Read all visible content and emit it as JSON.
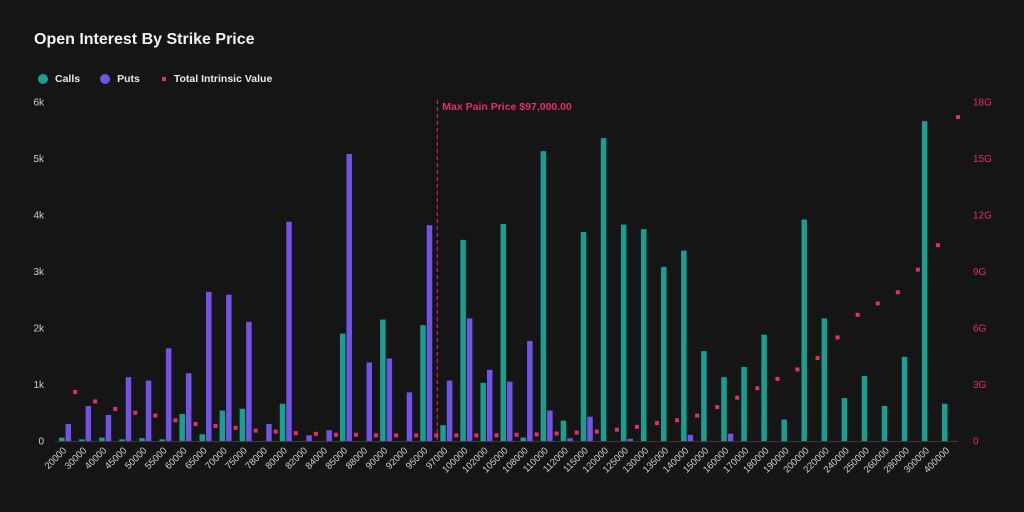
{
  "title": "Open Interest By Strike Price",
  "legend": {
    "calls": "Calls",
    "puts": "Puts",
    "intrinsic": "Total Intrinsic Value"
  },
  "colors": {
    "calls": "#1a9e91",
    "puts": "#7153e8",
    "intrinsic": "#e0306a",
    "background": "#151515"
  },
  "chart_data": {
    "type": "bar",
    "title": "Open Interest By Strike Price",
    "categories": [
      "20000",
      "30000",
      "40000",
      "45000",
      "50000",
      "55000",
      "60000",
      "65000",
      "70000",
      "75000",
      "78000",
      "80000",
      "82000",
      "84000",
      "85000",
      "88000",
      "90000",
      "92000",
      "95000",
      "97000",
      "100000",
      "102000",
      "105000",
      "108000",
      "110000",
      "112000",
      "115000",
      "120000",
      "125000",
      "130000",
      "135000",
      "140000",
      "150000",
      "160000",
      "170000",
      "180000",
      "190000",
      "200000",
      "220000",
      "240000",
      "250000",
      "260000",
      "280000",
      "300000",
      "400000"
    ],
    "series": [
      {
        "name": "Calls",
        "axis": "left",
        "values": [
          60,
          30,
          60,
          30,
          50,
          30,
          480,
          120,
          540,
          570,
          0,
          660,
          0,
          0,
          1900,
          0,
          2150,
          0,
          2050,
          280,
          3560,
          1030,
          3840,
          60,
          5130,
          360,
          3700,
          5360,
          3830,
          3750,
          3080,
          3370,
          1590,
          1130,
          1310,
          1880,
          380,
          3920,
          2170,
          760,
          1150,
          620,
          1490,
          5660,
          660
        ]
      },
      {
        "name": "Puts",
        "axis": "left",
        "values": [
          300,
          620,
          460,
          1130,
          1070,
          1640,
          1200,
          2640,
          2590,
          2110,
          300,
          3880,
          100,
          190,
          5080,
          1390,
          1460,
          860,
          3820,
          1070,
          2170,
          1260,
          1050,
          1770,
          540,
          50,
          430,
          0,
          40,
          0,
          0,
          110,
          0,
          130,
          0,
          0,
          0,
          0,
          0,
          0,
          0,
          0,
          0,
          0,
          0
        ]
      },
      {
        "name": "Total Intrinsic Value",
        "axis": "right",
        "type": "scatter",
        "values": [
          2.6,
          2.1,
          1.7,
          1.5,
          1.35,
          1.1,
          0.9,
          0.8,
          0.7,
          0.55,
          0.5,
          0.42,
          0.38,
          0.33,
          0.33,
          0.3,
          0.3,
          0.3,
          0.3,
          0.3,
          0.3,
          0.3,
          0.33,
          0.35,
          0.4,
          0.45,
          0.5,
          0.6,
          0.75,
          0.95,
          1.1,
          1.35,
          1.8,
          2.3,
          2.8,
          3.3,
          3.8,
          4.4,
          5.5,
          6.7,
          7.3,
          7.9,
          9.1,
          10.4,
          17.2
        ]
      }
    ],
    "ylim": [
      0,
      6000
    ],
    "y_ticks": [
      "0",
      "1k",
      "2k",
      "3k",
      "4k",
      "5k",
      "6k"
    ],
    "y2lim": [
      0,
      18
    ],
    "y2_unit": "G",
    "y2_ticks": [
      "0",
      "3G",
      "6G",
      "9G",
      "12G",
      "15G",
      "18G"
    ],
    "annotation": {
      "label": "Max Pain Price $97,000.00",
      "x": "97000"
    },
    "legend_position": "top-left",
    "grid": false
  }
}
